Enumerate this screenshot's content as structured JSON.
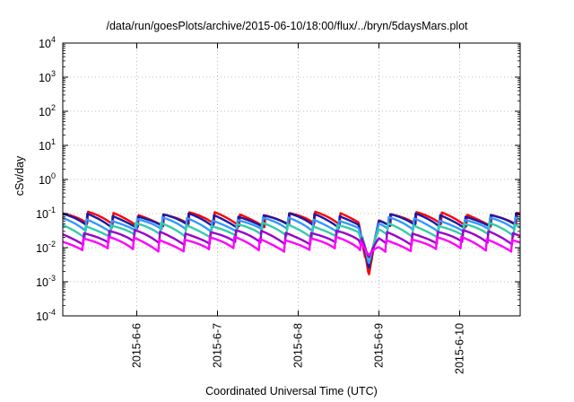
{
  "chart_data": {
    "type": "line",
    "title": "/data/run/goesPlots/archive/2015-06-10/18:00/flux/../bryn/5daysMars.plot",
    "xlabel": "Coordinated Universal Time (UTC)",
    "ylabel": "cSv/day",
    "yscale": "log",
    "ylim": [
      0.0001,
      10000
    ],
    "xlim": [
      "2015-06-05 02:00",
      "2015-06-10 18:00"
    ],
    "grid": true,
    "legend": "none",
    "ytick_bases": [
      "10",
      "10",
      "10",
      "10",
      "10",
      "10",
      "10",
      "10",
      "10"
    ],
    "ytick_exponents": [
      "-4",
      "-3",
      "-2",
      "-1",
      "0",
      "1",
      "2",
      "3",
      "4"
    ],
    "ytick_values": [
      0.0001,
      0.001,
      0.01,
      0.1,
      1,
      10,
      100,
      1000,
      10000
    ],
    "xtick_labels": [
      "2015-6-6",
      "2015-6-7",
      "2015-6-8",
      "2015-6-9",
      "2015-6-10"
    ],
    "xtick_values": [
      "2015-06-06",
      "2015-06-07",
      "2015-06-08",
      "2015-06-09",
      "2015-06-10"
    ],
    "series": [
      {
        "color": "#ff0000",
        "level": 0.075
      },
      {
        "color": "#1a1aa8",
        "level": 0.068
      },
      {
        "color": "#3399ff",
        "level": 0.052
      },
      {
        "color": "#33ccaa",
        "level": 0.036
      },
      {
        "color": "#9900cc",
        "level": 0.022
      },
      {
        "color": "#ff00ff",
        "level": 0.014
      }
    ],
    "notable_dip": {
      "time": "2015-06-08 21:00",
      "min_value": 0.0015
    }
  }
}
